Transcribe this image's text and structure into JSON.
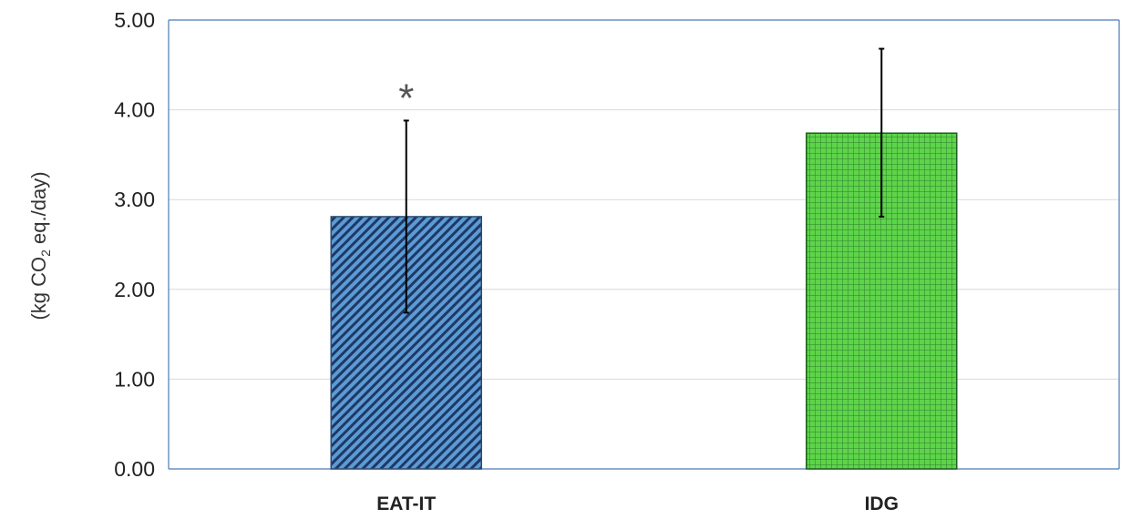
{
  "chart_data": {
    "type": "bar",
    "title": "",
    "xlabel": "",
    "ylabel_parts": {
      "prefix": "(kg CO",
      "subscript": "2",
      "suffix": " eq./day)"
    },
    "categories": [
      "EAT-IT",
      "IDG"
    ],
    "values": [
      2.81,
      3.74
    ],
    "error_bars": [
      {
        "lower": 1.74,
        "upper": 3.88
      },
      {
        "lower": 2.81,
        "upper": 4.68
      }
    ],
    "ylim": [
      0,
      5
    ],
    "yticks": [
      0,
      1,
      2,
      3,
      4,
      5
    ],
    "ytick_labels": [
      "0.00",
      "1.00",
      "2.00",
      "3.00",
      "4.00",
      "5.00"
    ],
    "grid": true,
    "legend": "none",
    "annotations": [
      {
        "category": "EAT-IT",
        "text": "*"
      }
    ],
    "bar_styles": [
      {
        "pattern": "diagonal-stripes",
        "fill": "#5b9bd5",
        "stripe": "#1f3864",
        "stroke": "#2f4b6e"
      },
      {
        "pattern": "grid",
        "fill": "#5ed44a",
        "line": "#2e7d2e",
        "stroke": "#1e5e1e"
      }
    ],
    "colors": {
      "axis": "#4a7ab5",
      "gridline": "#d9d9d9",
      "error_bar": "#000000"
    }
  }
}
